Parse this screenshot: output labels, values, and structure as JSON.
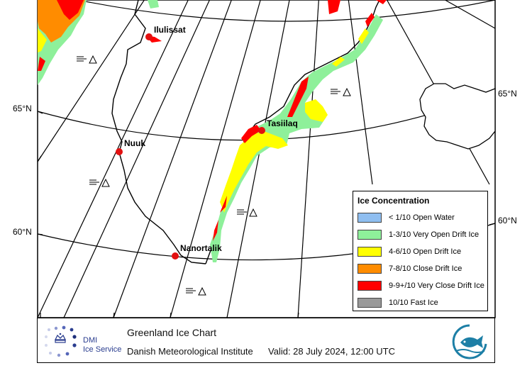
{
  "map": {
    "lat_labels": [
      {
        "text": "65°N",
        "side": "left"
      },
      {
        "text": "60°N",
        "side": "left"
      },
      {
        "text": "65°N",
        "side": "right"
      },
      {
        "text": "60°N",
        "side": "right"
      }
    ],
    "cities": [
      {
        "name": "Ilulissat"
      },
      {
        "name": "Tasiilaq"
      },
      {
        "name": "Nuuk"
      },
      {
        "name": "Nanortalik"
      }
    ],
    "ice_symbols": [
      "open-water-symbol",
      "open-water-symbol",
      "open-water-symbol",
      "open-water-symbol",
      "open-water-symbol"
    ]
  },
  "legend": {
    "title": "Ice Concentration",
    "items": [
      {
        "label": "< 1/10 Open Water",
        "color": "#8fbef0"
      },
      {
        "label": "1-3/10 Very Open Drift Ice",
        "color": "#8ef09a"
      },
      {
        "label": "4-6/10 Open Drift Ice",
        "color": "#ffff00"
      },
      {
        "label": "7-8/10 Close Drift Ice",
        "color": "#ff8c00"
      },
      {
        "label": "9-9+/10 Very Close Drift Ice",
        "color": "#ff0000"
      },
      {
        "label": "10/10 Fast Ice",
        "color": "#999999"
      }
    ]
  },
  "footer": {
    "title": "Greenland Ice Chart",
    "institute": "Danish Meteorological Institute",
    "valid": "Valid: 28 July 2024, 12:00 UTC",
    "dmi_name": "DMI",
    "dmi_service": "Ice Service"
  },
  "colors": {
    "ice_red": "#ff0000",
    "ice_yellow": "#ffff00",
    "ice_green": "#8ef09a",
    "ice_orange": "#ff8c00",
    "city_marker": "#e31010"
  }
}
